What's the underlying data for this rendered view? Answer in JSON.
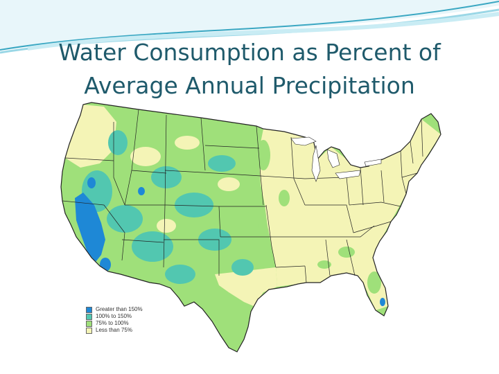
{
  "slide": {
    "title_line1": "Water Consumption as Percent of",
    "title_line2": "Average Annual Precipitation"
  },
  "theme": {
    "title_color": "#1f5a6b",
    "swoosh_dark": "#3aa7c2",
    "swoosh_light": "#bfe6f0"
  },
  "map": {
    "region": "contiguous-united-states",
    "legend": [
      {
        "label": "Greater than 150%",
        "color": "#1e88d6"
      },
      {
        "label": "100% to 150%",
        "color": "#52c7b0"
      },
      {
        "label": "75% to 100%",
        "color": "#9fe07a"
      },
      {
        "label": "Less than 75%",
        "color": "#f4f4b6"
      }
    ]
  }
}
